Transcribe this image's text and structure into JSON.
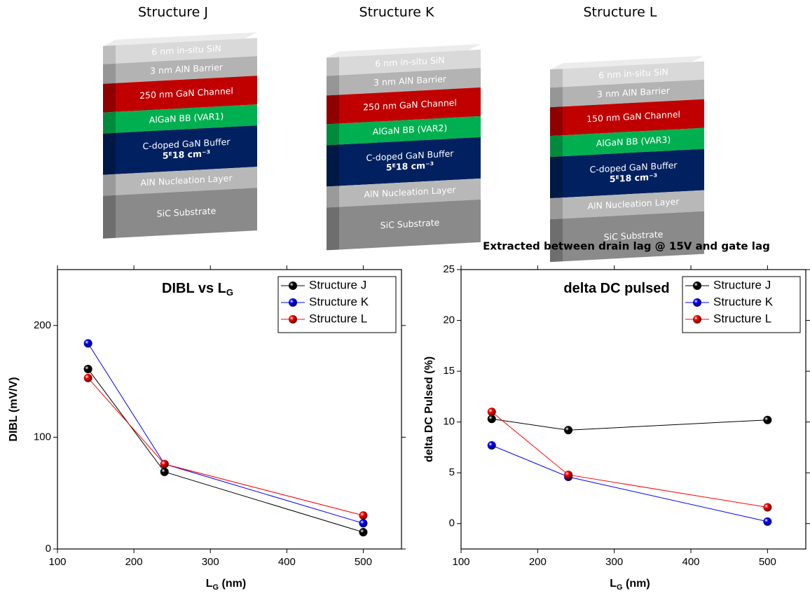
{
  "structures": [
    {
      "title": "Structure J",
      "layers": [
        [
          "6 nm in-situ SiN"
        ],
        [
          "3 nm AlN Barrier"
        ],
        [
          "250 nm GaN Channel"
        ],
        [
          "AlGaN BB (VAR1)"
        ],
        [
          "C-doped GaN Buffer",
          "5ᴱ18 cm⁻³"
        ],
        [
          "AlN Nucleation Layer"
        ],
        [
          "SiC Substrate"
        ]
      ]
    },
    {
      "title": "Structure K",
      "layers": [
        [
          "6 nm in-situ SiN"
        ],
        [
          "3 nm AlN Barrier"
        ],
        [
          "250 nm GaN Channel"
        ],
        [
          "AlGaN BB (VAR2)"
        ],
        [
          "C-doped GaN Buffer",
          "5ᴱ18 cm⁻³"
        ],
        [
          "AlN Nucleation Layer"
        ],
        [
          "SiC Substrate"
        ]
      ]
    },
    {
      "title": "Structure L",
      "layers": [
        [
          "6 nm in-situ SiN"
        ],
        [
          "3 nm AlN Barrier"
        ],
        [
          "150 nm GaN Channel"
        ],
        [
          "AlGaN BB (VAR3)"
        ],
        [
          "C-doped GaN Buffer",
          "5ᴱ18 cm⁻³"
        ],
        [
          "AlN Nucleation Layer"
        ],
        [
          "SiC Substrate"
        ]
      ]
    }
  ],
  "chart_data": [
    {
      "type": "line",
      "title": [
        "DIBL vs L",
        "G"
      ],
      "xlabel": [
        "L",
        "G",
        " (nm)"
      ],
      "ylabel": "DIBL (mV/V)",
      "x": [
        140,
        240,
        500
      ],
      "xlim": [
        100,
        550
      ],
      "xticks": [
        100,
        200,
        300,
        400,
        500
      ],
      "ylim": [
        0,
        250
      ],
      "yticks": [
        0,
        100,
        200
      ],
      "legend": "upper right",
      "series": [
        {
          "name": "Structure J",
          "color": "#000000",
          "values": [
            161,
            69,
            15
          ]
        },
        {
          "name": "Structure K",
          "color": "#0000ff",
          "values": [
            184,
            76,
            23
          ]
        },
        {
          "name": "Structure L",
          "color": "#ff0000",
          "values": [
            153,
            76,
            30
          ]
        }
      ]
    },
    {
      "type": "line",
      "title": [
        "delta DC pulsed"
      ],
      "annotation": "Extracted between drain lag @ 15V and gate lag",
      "xlabel": [
        "L",
        "G",
        " (nm)"
      ],
      "ylabel": "delta DC Pulsed (%)",
      "x": [
        140,
        240,
        500
      ],
      "xlim": [
        100,
        550
      ],
      "xticks": [
        100,
        200,
        300,
        400,
        500
      ],
      "ylim": [
        -2.5,
        25
      ],
      "yticks": [
        0,
        5,
        10,
        15,
        20,
        25
      ],
      "legend": "upper right",
      "series": [
        {
          "name": "Structure J",
          "color": "#000000",
          "values": [
            10.3,
            9.2,
            10.2
          ]
        },
        {
          "name": "Structure K",
          "color": "#0000ff",
          "values": [
            7.7,
            4.6,
            0.2
          ]
        },
        {
          "name": "Structure L",
          "color": "#ff0000",
          "values": [
            11.0,
            4.8,
            1.6
          ]
        }
      ]
    }
  ]
}
